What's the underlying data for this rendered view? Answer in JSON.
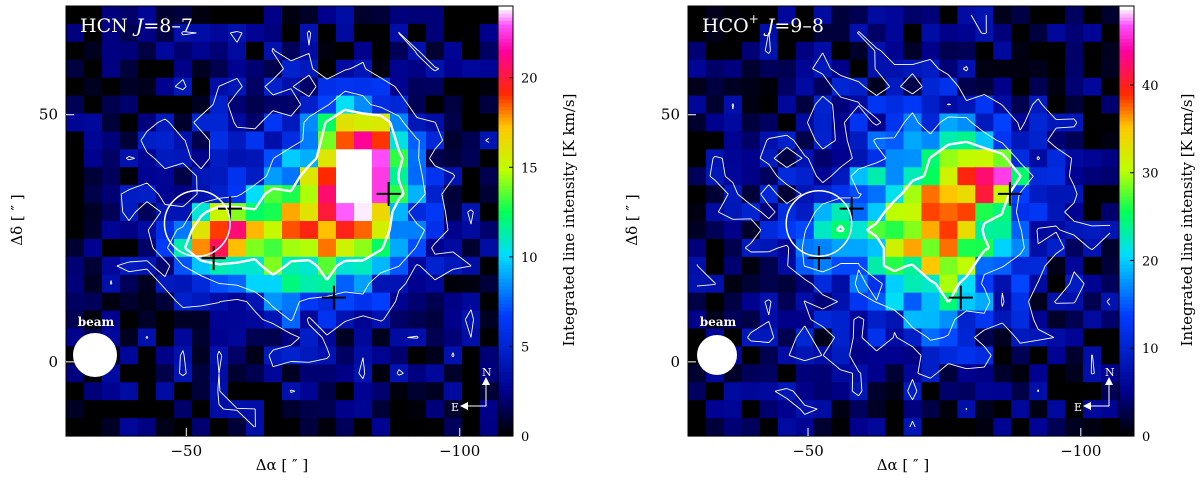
{
  "chart_data": [
    {
      "type": "heatmap",
      "title": "HCN J=8–7",
      "title_parts": {
        "species": "HCN",
        "transition_symbol": "J",
        "transition": "=8–7"
      },
      "xlabel": "Δα [ ″ ]",
      "ylabel": "Δδ [ ″ ]",
      "colorbar_label": "Integrated line intensity [K km/s]",
      "xlim": [
        -28,
        -107
      ],
      "ylim": [
        -15,
        72
      ],
      "x_ticks": [
        -50,
        -100
      ],
      "x_tick_labels": [
        "−50",
        "−100"
      ],
      "y_ticks": [
        0,
        50
      ],
      "y_tick_labels": [
        "0",
        "50"
      ],
      "colorbar_range": [
        0,
        24
      ],
      "colorbar_ticks": [
        0,
        5,
        10,
        15,
        20
      ],
      "colorbar_tick_labels": [
        "0",
        "5",
        "10",
        "15",
        "20"
      ],
      "beam_label": "beam",
      "compass": {
        "north": "N",
        "east": "E"
      },
      "peak": {
        "x": -81,
        "y": 37,
        "value": 24
      },
      "components": [
        {
          "x": -82,
          "y": 40,
          "sx": 5,
          "sy": 8,
          "value": 14
        },
        {
          "x": -80,
          "y": 30,
          "sx": 8,
          "sy": 9,
          "value": 9
        },
        {
          "x": -83,
          "y": 45,
          "sx": 6,
          "sy": 5,
          "value": 5
        },
        {
          "x": -70,
          "y": 24,
          "sx": 9,
          "sy": 10,
          "value": 6
        },
        {
          "x": -55,
          "y": 25,
          "sx": 4,
          "sy": 4,
          "value": 13
        },
        {
          "x": -62,
          "y": 26,
          "sx": 7,
          "sy": 5,
          "value": 6
        },
        {
          "x": -70,
          "y": 30,
          "sx": 22,
          "sy": 22,
          "value": 4.5
        }
      ],
      "markers": [
        {
          "x": -58,
          "y": 31
        },
        {
          "x": -87,
          "y": 34
        },
        {
          "x": -55,
          "y": 21
        },
        {
          "x": -77,
          "y": 13
        }
      ],
      "circle": {
        "x": -52,
        "y": 28,
        "r": 6
      }
    },
    {
      "type": "heatmap",
      "title": "HCO⁺ J=9–8",
      "title_parts": {
        "species": "HCO",
        "superscript": "+",
        "transition_symbol": "J",
        "transition": "=9–8"
      },
      "xlabel": "Δα [ ″ ]",
      "ylabel": "Δδ [ ″ ]",
      "colorbar_label": "Integrated line intensity [K km/s]",
      "xlim": [
        -28,
        -107
      ],
      "ylim": [
        -15,
        72
      ],
      "x_ticks": [
        -50,
        -100
      ],
      "x_tick_labels": [
        "−50",
        "−100"
      ],
      "y_ticks": [
        0,
        50
      ],
      "y_tick_labels": [
        "0",
        "50"
      ],
      "colorbar_range": [
        0,
        49
      ],
      "colorbar_ticks": [
        0,
        10,
        20,
        30,
        40
      ],
      "colorbar_tick_labels": [
        "0",
        "10",
        "20",
        "30",
        "40"
      ],
      "beam_label": "beam",
      "compass": {
        "north": "N",
        "east": "E"
      },
      "peak": {
        "x": -84,
        "y": 38,
        "value": 47
      },
      "components": [
        {
          "x": -81,
          "y": 36,
          "sx": 7,
          "sy": 8,
          "value": 18
        },
        {
          "x": -70,
          "y": 28,
          "sx": 9,
          "sy": 12,
          "value": 14
        },
        {
          "x": -75,
          "y": 20,
          "sx": 7,
          "sy": 9,
          "value": 10
        },
        {
          "x": -53,
          "y": 26,
          "sx": 4,
          "sy": 4,
          "value": 12
        },
        {
          "x": -68,
          "y": 28,
          "sx": 22,
          "sy": 24,
          "value": 10
        }
      ],
      "markers": [
        {
          "x": -58,
          "y": 31
        },
        {
          "x": -87,
          "y": 34
        },
        {
          "x": -52,
          "y": 21
        },
        {
          "x": -78,
          "y": 13
        }
      ],
      "circle": {
        "x": -52,
        "y": 28,
        "r": 6
      }
    }
  ]
}
